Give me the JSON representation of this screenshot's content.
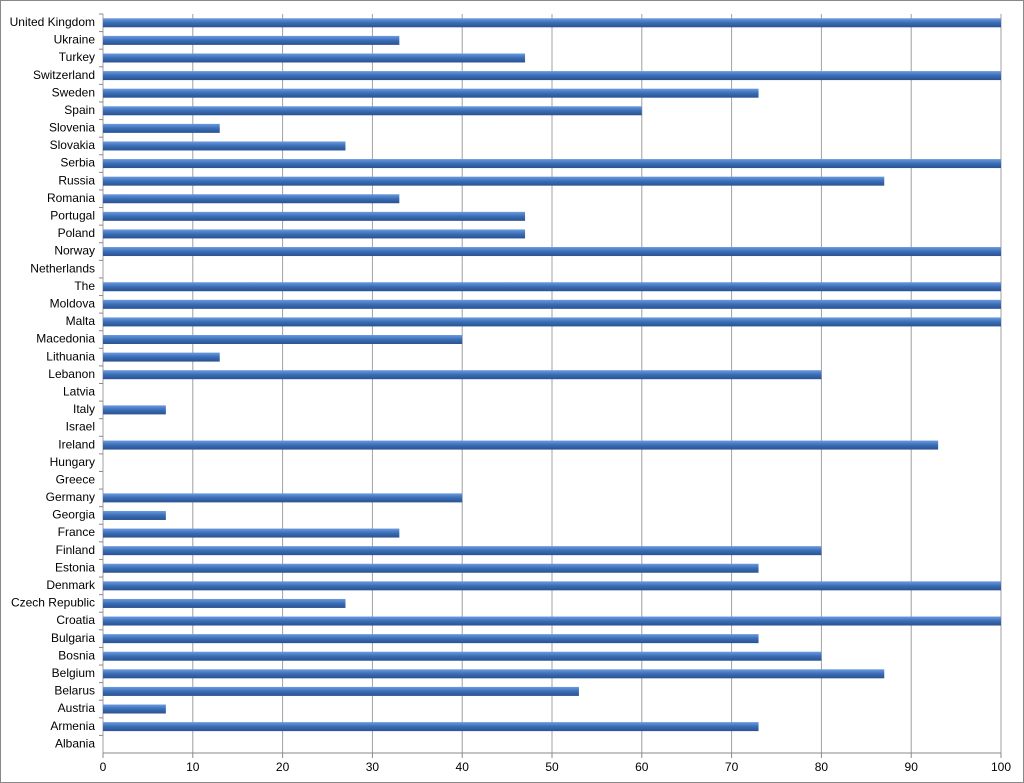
{
  "chart_data": {
    "type": "hbar",
    "categories": [
      "United Kingdom",
      "Ukraine",
      "Turkey",
      "Switzerland",
      "Sweden",
      "Spain",
      "Slovenia",
      "Slovakia",
      "Serbia",
      "Russia",
      "Romania",
      "Portugal",
      "Poland",
      "Norway",
      "Netherlands",
      "The",
      "Moldova",
      "Malta",
      "Macedonia",
      "Lithuania",
      "Lebanon",
      "Latvia",
      "Italy",
      "Israel",
      "Ireland",
      "Hungary",
      "Greece",
      "Germany",
      "Georgia",
      "France",
      "Finland",
      "Estonia",
      "Denmark",
      "Czech Republic",
      "Croatia",
      "Bulgaria",
      "Bosnia",
      "Belgium",
      "Belarus",
      "Austria",
      "Armenia",
      "Albania"
    ],
    "values": [
      100,
      33,
      47,
      100,
      73,
      60,
      13,
      27,
      100,
      87,
      33,
      47,
      47,
      100,
      0,
      100,
      100,
      100,
      40,
      13,
      80,
      0,
      7,
      0,
      93,
      0,
      0,
      40,
      7,
      33,
      80,
      73,
      100,
      27,
      100,
      73,
      80,
      87,
      53,
      7,
      73,
      0
    ],
    "color": "#3a6db5",
    "xlim": [
      0,
      100
    ],
    "xticks": [
      0,
      10,
      20,
      30,
      40,
      50,
      60,
      70,
      80,
      90,
      100
    ],
    "grid": true
  }
}
